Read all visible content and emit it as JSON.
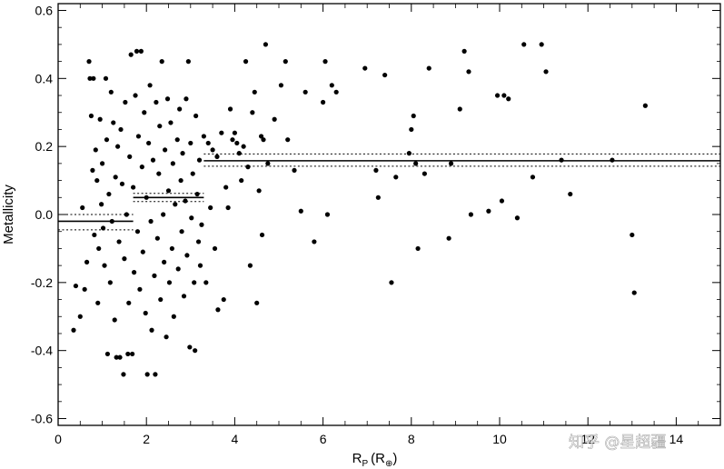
{
  "chart_data": {
    "type": "scatter",
    "xlabel": "R",
    "xlabel_sub": "P",
    "xlabel_unit": "(R",
    "xlabel_unit_sub": "⊕",
    "xlabel_close": ")",
    "ylabel": "Metallicity",
    "xlim": [
      0,
      15
    ],
    "ylim": [
      -0.62,
      0.62
    ],
    "xticks": [
      0,
      2,
      4,
      6,
      8,
      10,
      12,
      14
    ],
    "xtick_labels": [
      "0",
      "2",
      "4",
      "6",
      "8",
      "10",
      "12",
      "14"
    ],
    "yticks": [
      -0.6,
      -0.4,
      -0.2,
      0.0,
      0.2,
      0.4,
      0.6
    ],
    "ytick_labels": [
      "-0.6",
      "-0.4",
      "-0.2",
      "0.0",
      "0.2",
      "0.4",
      "0.6"
    ],
    "grid": false,
    "point_color": "#000000",
    "bins": [
      {
        "x_range": [
          0,
          1.7
        ],
        "mean": -0.02,
        "lower": -0.045,
        "upper": 0.0
      },
      {
        "x_range": [
          1.7,
          3.3
        ],
        "mean": 0.05,
        "lower": 0.038,
        "upper": 0.062
      },
      {
        "x_range": [
          3.3,
          15
        ],
        "mean": 0.158,
        "lower": 0.142,
        "upper": 0.178
      }
    ],
    "points": [
      [
        0.35,
        -0.34
      ],
      [
        0.4,
        -0.21
      ],
      [
        0.5,
        -0.3
      ],
      [
        0.55,
        0.02
      ],
      [
        0.6,
        -0.22
      ],
      [
        0.65,
        -0.14
      ],
      [
        0.7,
        0.45
      ],
      [
        0.72,
        0.4
      ],
      [
        0.75,
        0.29
      ],
      [
        0.78,
        0.13
      ],
      [
        0.8,
        0.4
      ],
      [
        0.82,
        -0.06
      ],
      [
        0.85,
        0.19
      ],
      [
        0.88,
        0.1
      ],
      [
        0.9,
        -0.26
      ],
      [
        0.92,
        -0.1
      ],
      [
        0.95,
        0.28
      ],
      [
        0.98,
        0.03
      ],
      [
        1.0,
        0.15
      ],
      [
        1.02,
        -0.04
      ],
      [
        1.05,
        -0.15
      ],
      [
        1.08,
        0.4
      ],
      [
        1.1,
        0.22
      ],
      [
        1.12,
        -0.41
      ],
      [
        1.15,
        0.06
      ],
      [
        1.18,
        -0.2
      ],
      [
        1.2,
        0.36
      ],
      [
        1.22,
        -0.02
      ],
      [
        1.25,
        0.27
      ],
      [
        1.28,
        -0.31
      ],
      [
        1.3,
        0.11
      ],
      [
        1.32,
        -0.42
      ],
      [
        1.35,
        0.2
      ],
      [
        1.38,
        -0.08
      ],
      [
        1.4,
        -0.42
      ],
      [
        1.42,
        0.25
      ],
      [
        1.45,
        0.09
      ],
      [
        1.48,
        -0.47
      ],
      [
        1.5,
        -0.13
      ],
      [
        1.52,
        0.33
      ],
      [
        1.55,
        0.0
      ],
      [
        1.58,
        -0.41
      ],
      [
        1.6,
        -0.26
      ],
      [
        1.62,
        0.17
      ],
      [
        1.65,
        0.47
      ],
      [
        1.68,
        -0.41
      ],
      [
        1.7,
        0.08
      ],
      [
        1.72,
        -0.17
      ],
      [
        1.75,
        0.35
      ],
      [
        1.78,
        0.48
      ],
      [
        1.8,
        -0.05
      ],
      [
        1.82,
        0.23
      ],
      [
        1.85,
        -0.22
      ],
      [
        1.88,
        0.48
      ],
      [
        1.9,
        0.14
      ],
      [
        1.92,
        -0.11
      ],
      [
        1.95,
        0.3
      ],
      [
        1.98,
        -0.29
      ],
      [
        2.0,
        0.05
      ],
      [
        2.02,
        -0.47
      ],
      [
        2.05,
        0.21
      ],
      [
        2.08,
        0.38
      ],
      [
        2.1,
        -0.02
      ],
      [
        2.12,
        -0.34
      ],
      [
        2.15,
        0.16
      ],
      [
        2.18,
        -0.18
      ],
      [
        2.2,
        -0.47
      ],
      [
        2.22,
        0.33
      ],
      [
        2.25,
        -0.07
      ],
      [
        2.28,
        0.12
      ],
      [
        2.3,
        0.26
      ],
      [
        2.32,
        -0.25
      ],
      [
        2.35,
        0.45
      ],
      [
        2.38,
        0.0
      ],
      [
        2.4,
        -0.14
      ],
      [
        2.42,
        0.19
      ],
      [
        2.45,
        -0.36
      ],
      [
        2.48,
        0.34
      ],
      [
        2.5,
        0.07
      ],
      [
        2.52,
        -0.2
      ],
      [
        2.55,
        0.27
      ],
      [
        2.58,
        -0.1
      ],
      [
        2.6,
        0.15
      ],
      [
        2.62,
        -0.3
      ],
      [
        2.65,
        0.03
      ],
      [
        2.7,
        0.22
      ],
      [
        2.72,
        -0.16
      ],
      [
        2.75,
        0.31
      ],
      [
        2.78,
        0.1
      ],
      [
        2.8,
        -0.05
      ],
      [
        2.82,
        0.18
      ],
      [
        2.85,
        -0.24
      ],
      [
        2.88,
        0.04
      ],
      [
        2.9,
        0.34
      ],
      [
        2.92,
        -0.12
      ],
      [
        2.95,
        0.45
      ],
      [
        2.98,
        -0.39
      ],
      [
        3.0,
        0.21
      ],
      [
        3.02,
        -0.01
      ],
      [
        3.05,
        0.12
      ],
      [
        3.08,
        -0.2
      ],
      [
        3.1,
        -0.4
      ],
      [
        3.12,
        0.29
      ],
      [
        3.15,
        0.06
      ],
      [
        3.18,
        -0.08
      ],
      [
        3.2,
        0.16
      ],
      [
        3.22,
        -0.15
      ],
      [
        3.25,
        -0.03
      ],
      [
        3.3,
        0.23
      ],
      [
        3.35,
        -0.2
      ],
      [
        3.4,
        0.21
      ],
      [
        3.45,
        0.02
      ],
      [
        3.5,
        0.19
      ],
      [
        3.55,
        -0.1
      ],
      [
        3.6,
        0.17
      ],
      [
        3.62,
        -0.28
      ],
      [
        3.7,
        0.24
      ],
      [
        3.75,
        -0.25
      ],
      [
        3.8,
        0.08
      ],
      [
        3.85,
        0.02
      ],
      [
        3.9,
        0.31
      ],
      [
        3.95,
        0.22
      ],
      [
        4.0,
        0.24
      ],
      [
        4.05,
        0.21
      ],
      [
        4.1,
        0.18
      ],
      [
        4.15,
        0.1
      ],
      [
        4.2,
        0.2
      ],
      [
        4.25,
        0.45
      ],
      [
        4.3,
        0.14
      ],
      [
        4.35,
        -0.15
      ],
      [
        4.4,
        0.3
      ],
      [
        4.45,
        0.36
      ],
      [
        4.5,
        -0.26
      ],
      [
        4.55,
        0.07
      ],
      [
        4.6,
        0.23
      ],
      [
        4.62,
        -0.06
      ],
      [
        4.65,
        0.22
      ],
      [
        4.7,
        0.5
      ],
      [
        4.75,
        0.15
      ],
      [
        4.9,
        0.28
      ],
      [
        5.05,
        0.38
      ],
      [
        5.15,
        0.45
      ],
      [
        5.2,
        0.22
      ],
      [
        5.35,
        0.13
      ],
      [
        5.5,
        0.01
      ],
      [
        5.6,
        0.36
      ],
      [
        5.8,
        -0.08
      ],
      [
        6.0,
        0.33
      ],
      [
        6.05,
        0.45
      ],
      [
        6.1,
        0.0
      ],
      [
        6.2,
        0.38
      ],
      [
        6.3,
        0.36
      ],
      [
        6.95,
        0.43
      ],
      [
        7.2,
        0.13
      ],
      [
        7.25,
        0.05
      ],
      [
        7.4,
        0.41
      ],
      [
        7.55,
        -0.2
      ],
      [
        7.65,
        0.11
      ],
      [
        7.95,
        0.18
      ],
      [
        8.0,
        0.25
      ],
      [
        8.05,
        0.29
      ],
      [
        8.1,
        0.15
      ],
      [
        8.15,
        -0.1
      ],
      [
        8.3,
        0.12
      ],
      [
        8.4,
        0.43
      ],
      [
        8.85,
        -0.07
      ],
      [
        8.9,
        0.15
      ],
      [
        9.1,
        0.31
      ],
      [
        9.2,
        0.48
      ],
      [
        9.3,
        0.42
      ],
      [
        9.35,
        0.0
      ],
      [
        9.75,
        0.01
      ],
      [
        9.95,
        0.35
      ],
      [
        10.05,
        0.04
      ],
      [
        10.1,
        0.35
      ],
      [
        10.2,
        0.34
      ],
      [
        10.4,
        -0.01
      ],
      [
        10.55,
        0.5
      ],
      [
        10.75,
        0.11
      ],
      [
        10.95,
        0.5
      ],
      [
        11.05,
        0.42
      ],
      [
        11.4,
        0.16
      ],
      [
        11.6,
        0.06
      ],
      [
        12.55,
        0.16
      ],
      [
        13.0,
        -0.06
      ],
      [
        13.05,
        -0.23
      ],
      [
        13.3,
        0.32
      ]
    ]
  },
  "watermark": {
    "text": "知乎 @星超疆"
  }
}
